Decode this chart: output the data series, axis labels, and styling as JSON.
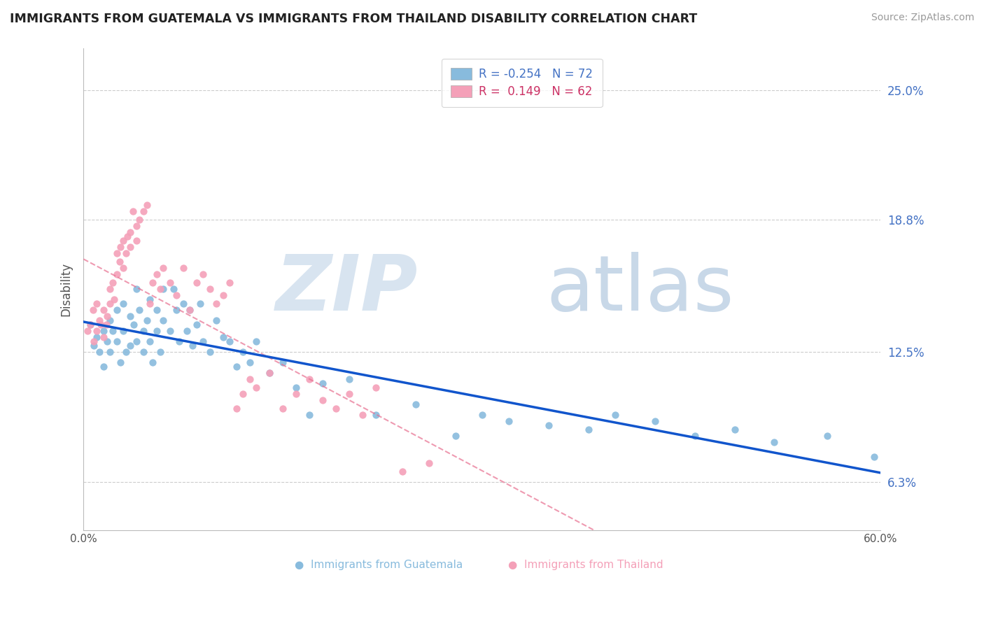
{
  "title": "IMMIGRANTS FROM GUATEMALA VS IMMIGRANTS FROM THAILAND DISABILITY CORRELATION CHART",
  "source": "Source: ZipAtlas.com",
  "ylabel": "Disability",
  "yticks": [
    0.063,
    0.125,
    0.188,
    0.25
  ],
  "ytick_labels": [
    "6.3%",
    "12.5%",
    "18.8%",
    "25.0%"
  ],
  "xlim": [
    0.0,
    0.6
  ],
  "ylim": [
    0.04,
    0.27
  ],
  "guatemala_R": -0.254,
  "guatemala_N": 72,
  "thailand_R": 0.149,
  "thailand_N": 62,
  "guatemala_color": "#88bbdd",
  "thailand_color": "#f4a0b8",
  "guatemala_line_color": "#1155cc",
  "thailand_line_color": "#e87090",
  "guatemala_scatter_x": [
    0.005,
    0.008,
    0.01,
    0.012,
    0.015,
    0.015,
    0.018,
    0.02,
    0.02,
    0.022,
    0.025,
    0.025,
    0.028,
    0.03,
    0.03,
    0.032,
    0.035,
    0.035,
    0.038,
    0.04,
    0.04,
    0.042,
    0.045,
    0.045,
    0.048,
    0.05,
    0.05,
    0.052,
    0.055,
    0.055,
    0.058,
    0.06,
    0.06,
    0.065,
    0.068,
    0.07,
    0.072,
    0.075,
    0.078,
    0.08,
    0.082,
    0.085,
    0.088,
    0.09,
    0.095,
    0.1,
    0.105,
    0.11,
    0.115,
    0.12,
    0.125,
    0.13,
    0.14,
    0.15,
    0.16,
    0.17,
    0.18,
    0.2,
    0.22,
    0.25,
    0.28,
    0.3,
    0.32,
    0.35,
    0.38,
    0.4,
    0.43,
    0.46,
    0.49,
    0.52,
    0.56,
    0.595
  ],
  "guatemala_scatter_y": [
    0.138,
    0.128,
    0.132,
    0.125,
    0.135,
    0.118,
    0.13,
    0.14,
    0.125,
    0.135,
    0.145,
    0.13,
    0.12,
    0.148,
    0.135,
    0.125,
    0.142,
    0.128,
    0.138,
    0.155,
    0.13,
    0.145,
    0.135,
    0.125,
    0.14,
    0.15,
    0.13,
    0.12,
    0.145,
    0.135,
    0.125,
    0.155,
    0.14,
    0.135,
    0.155,
    0.145,
    0.13,
    0.148,
    0.135,
    0.145,
    0.128,
    0.138,
    0.148,
    0.13,
    0.125,
    0.14,
    0.132,
    0.13,
    0.118,
    0.125,
    0.12,
    0.13,
    0.115,
    0.12,
    0.108,
    0.095,
    0.11,
    0.112,
    0.095,
    0.1,
    0.085,
    0.095,
    0.092,
    0.09,
    0.088,
    0.095,
    0.092,
    0.085,
    0.088,
    0.082,
    0.085,
    0.075
  ],
  "thailand_scatter_x": [
    0.003,
    0.005,
    0.007,
    0.008,
    0.01,
    0.01,
    0.012,
    0.013,
    0.015,
    0.015,
    0.017,
    0.018,
    0.02,
    0.02,
    0.022,
    0.023,
    0.025,
    0.025,
    0.027,
    0.028,
    0.03,
    0.03,
    0.032,
    0.033,
    0.035,
    0.035,
    0.037,
    0.04,
    0.04,
    0.042,
    0.045,
    0.048,
    0.05,
    0.052,
    0.055,
    0.058,
    0.06,
    0.065,
    0.07,
    0.075,
    0.08,
    0.085,
    0.09,
    0.095,
    0.1,
    0.105,
    0.11,
    0.115,
    0.12,
    0.125,
    0.13,
    0.14,
    0.15,
    0.16,
    0.17,
    0.18,
    0.19,
    0.2,
    0.21,
    0.22,
    0.24,
    0.26
  ],
  "thailand_scatter_y": [
    0.135,
    0.138,
    0.145,
    0.13,
    0.148,
    0.135,
    0.14,
    0.138,
    0.145,
    0.132,
    0.138,
    0.142,
    0.148,
    0.155,
    0.158,
    0.15,
    0.162,
    0.172,
    0.168,
    0.175,
    0.178,
    0.165,
    0.172,
    0.18,
    0.175,
    0.182,
    0.192,
    0.185,
    0.178,
    0.188,
    0.192,
    0.195,
    0.148,
    0.158,
    0.162,
    0.155,
    0.165,
    0.158,
    0.152,
    0.165,
    0.145,
    0.158,
    0.162,
    0.155,
    0.148,
    0.152,
    0.158,
    0.098,
    0.105,
    0.112,
    0.108,
    0.115,
    0.098,
    0.105,
    0.112,
    0.102,
    0.098,
    0.105,
    0.095,
    0.108,
    0.068,
    0.072
  ]
}
